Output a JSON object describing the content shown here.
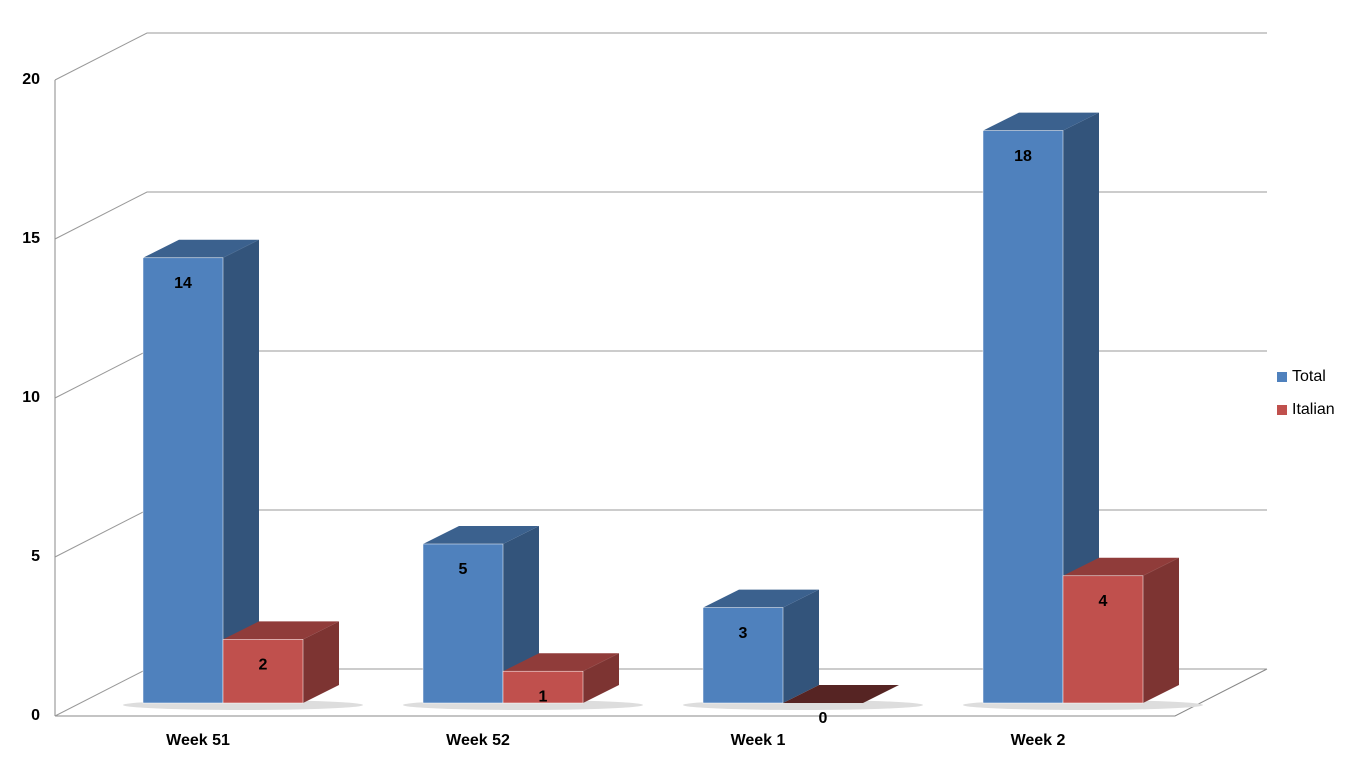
{
  "chart_data": {
    "type": "bar3d",
    "categories": [
      "Week 51",
      "Week 52",
      "Week 1",
      "Week 2"
    ],
    "series": [
      {
        "name": "Total",
        "color": "#4f81bd",
        "values": [
          14,
          5,
          3,
          18
        ]
      },
      {
        "name": "Italian",
        "color": "#c0504d",
        "values": [
          2,
          1,
          0,
          4
        ]
      }
    ],
    "ylim": [
      0,
      20
    ],
    "yticks": [
      0,
      5,
      10,
      15,
      20
    ],
    "grid": true,
    "legend": "right"
  }
}
